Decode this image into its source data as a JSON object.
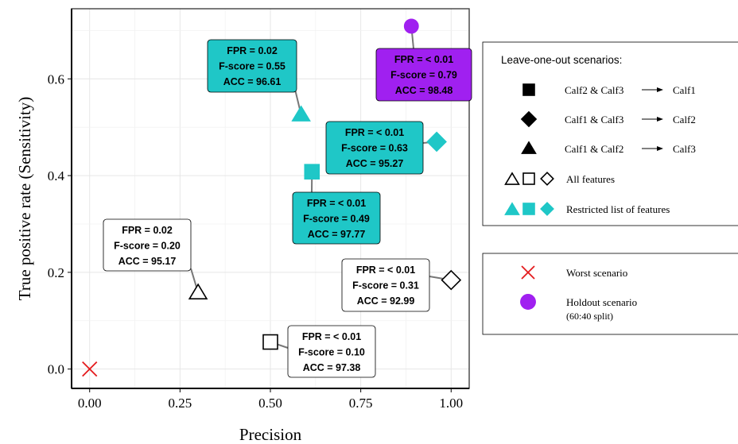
{
  "chart_data": {
    "type": "scatter",
    "xlabel": "Precision",
    "ylabel": "True positive rate (Sensitivity)",
    "xlim": [
      -0.05,
      1.05
    ],
    "ylim": [
      -0.04,
      0.745
    ],
    "xticks": [
      0.0,
      0.25,
      0.5,
      0.75,
      1.0
    ],
    "xtick_labels": [
      "0.00",
      "0.25",
      "0.50",
      "0.75",
      "1.00"
    ],
    "yticks": [
      0.0,
      0.2,
      0.4,
      0.6
    ],
    "ytick_labels": [
      "0.0",
      "0.2",
      "0.4",
      "0.6"
    ],
    "grid": true,
    "colors": {
      "teal": "#1fc7c7",
      "purple": "#a020f0",
      "red": "#e41a1c",
      "white": "#ffffff"
    },
    "points": [
      {
        "id": "worst",
        "x": 0.0,
        "y": 0.0,
        "shape": "cross",
        "fill": "red"
      },
      {
        "id": "all-calf1",
        "x": 0.5,
        "y": 0.056,
        "shape": "square",
        "fill": "white",
        "label": [
          "FPR = < 0.01",
          "F-score = 0.10",
          "ACC = 97.38"
        ]
      },
      {
        "id": "all-calf3",
        "x": 0.3,
        "y": 0.158,
        "shape": "triangle",
        "fill": "white",
        "label": [
          "FPR = 0.02",
          "F-score = 0.20",
          "ACC = 95.17"
        ]
      },
      {
        "id": "all-calf2",
        "x": 1.0,
        "y": 0.184,
        "shape": "diamond",
        "fill": "white",
        "label": [
          "FPR = < 0.01",
          "F-score = 0.31",
          "ACC = 92.99"
        ]
      },
      {
        "id": "rest-calf1",
        "x": 0.615,
        "y": 0.408,
        "shape": "square",
        "fill": "teal",
        "label": [
          "FPR = < 0.01",
          "F-score = 0.49",
          "ACC = 97.77"
        ]
      },
      {
        "id": "rest-calf2",
        "x": 0.96,
        "y": 0.47,
        "shape": "diamond",
        "fill": "teal",
        "label": [
          "FPR = < 0.01",
          "F-score = 0.63",
          "ACC = 95.27"
        ]
      },
      {
        "id": "rest-calf3",
        "x": 0.585,
        "y": 0.526,
        "shape": "triangle",
        "fill": "teal",
        "label": [
          "FPR = 0.02",
          "F-score = 0.55",
          "ACC = 96.61"
        ]
      },
      {
        "id": "holdout",
        "x": 0.89,
        "y": 0.709,
        "shape": "circle",
        "fill": "purple",
        "label": [
          "FPR = < 0.01",
          "F-score = 0.79",
          "ACC = 98.48"
        ]
      }
    ],
    "legend": {
      "position": "right",
      "title": "Leave-one-out scenarios:",
      "scenarios": [
        {
          "shape": "square",
          "from": "Calf2 & Calf3",
          "to": "Calf1"
        },
        {
          "shape": "diamond",
          "from": "Calf1 & Calf3",
          "to": "Calf2"
        },
        {
          "shape": "triangle",
          "from": "Calf1 & Calf2",
          "to": "Calf3"
        }
      ],
      "feature_sets": [
        {
          "fill": "white",
          "label": "All features"
        },
        {
          "fill": "teal",
          "label": "Restricted list of features"
        }
      ],
      "other": [
        {
          "shape": "cross",
          "fill": "red",
          "label": "Worst scenario"
        },
        {
          "shape": "circle",
          "fill": "purple",
          "label": "Holdout scenario",
          "sublabel": "(60:40 split)"
        }
      ]
    }
  }
}
